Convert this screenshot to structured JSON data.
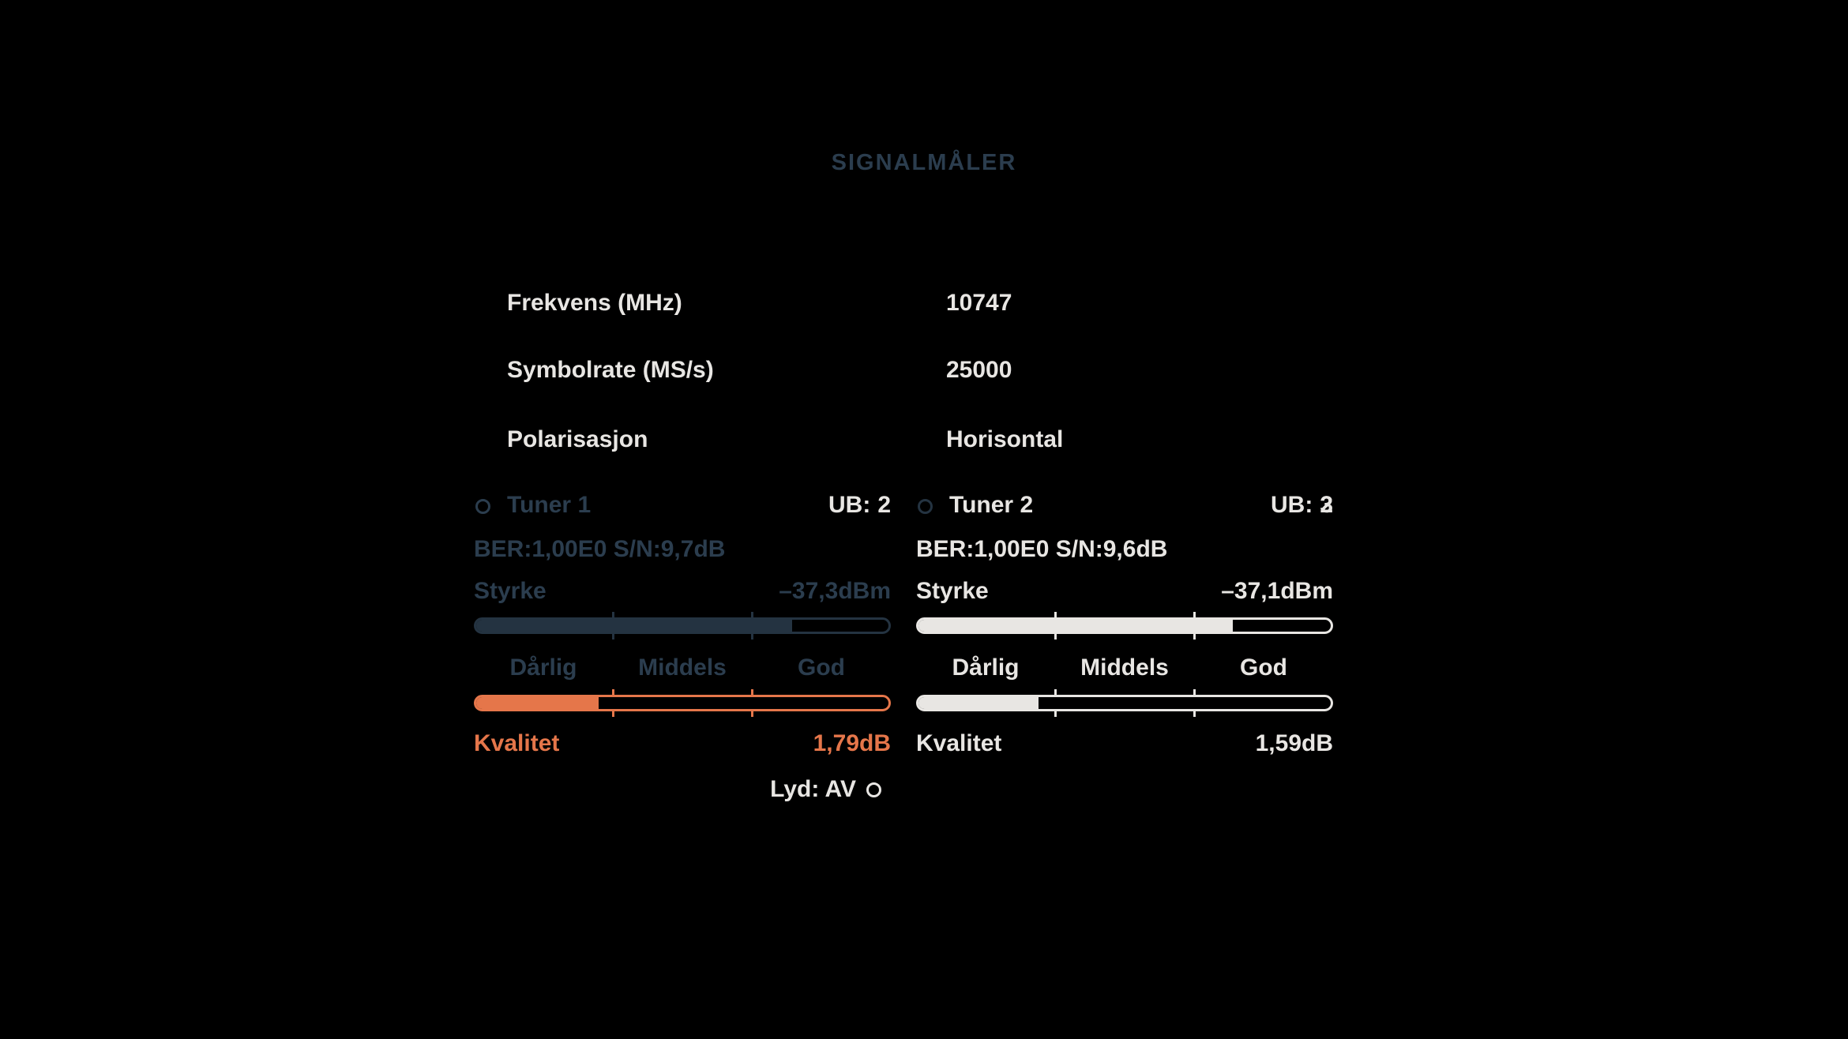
{
  "title": "SIGNALMÅLER",
  "colors": {
    "background": "#000000",
    "dim_text": "#2b3d4e",
    "dim_bar": "#243341",
    "light": "#e8e6e3",
    "orange": "#e5764a"
  },
  "info_rows": [
    {
      "label": "Frekvens (MHz)",
      "value": "10747"
    },
    {
      "label": "Symbolrate (MS/s)",
      "value": "25000"
    },
    {
      "label": "Polarisasjon",
      "value": "Horisontal"
    }
  ],
  "tuners": [
    {
      "name": "Tuner 1",
      "ub_label": "UB:",
      "ub_value": "2",
      "ub_overlay": "",
      "ber": "BER:1,00E0 S/N:9,7dB",
      "strength_label": "Styrke",
      "strength_value": "–37,3dBm",
      "strength_percent": 76.7,
      "scale_labels": [
        "Dårlig",
        "Middels",
        "God"
      ],
      "quality_label": "Kvalitet",
      "quality_value": "1,79dB",
      "quality_percent": 29.7,
      "audio_label": "Lyd: AV"
    },
    {
      "name": "Tuner 2",
      "ub_label": "UB:",
      "ub_value": "3",
      "ub_overlay": "2",
      "ber": "BER:1,00E0 S/N:9,6dB",
      "strength_label": "Styrke",
      "strength_value": "–37,1dBm",
      "strength_percent": 76.3,
      "scale_labels": [
        "Dårlig",
        "Middels",
        "God"
      ],
      "quality_label": "Kvalitet",
      "quality_value": "1,59dB",
      "quality_percent": 29.2
    }
  ]
}
